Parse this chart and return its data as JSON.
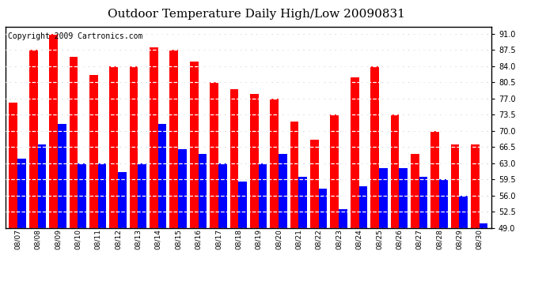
{
  "title": "Outdoor Temperature Daily High/Low 20090831",
  "copyright": "Copyright 2009 Cartronics.com",
  "dates": [
    "08/07",
    "08/08",
    "08/09",
    "08/10",
    "08/11",
    "08/12",
    "08/13",
    "08/14",
    "08/15",
    "08/16",
    "08/17",
    "08/18",
    "08/19",
    "08/20",
    "08/21",
    "08/22",
    "08/23",
    "08/24",
    "08/25",
    "08/26",
    "08/27",
    "08/28",
    "08/29",
    "08/30"
  ],
  "highs": [
    76,
    87.5,
    91,
    86,
    82,
    84,
    84,
    88,
    87.5,
    85,
    80.5,
    79,
    78,
    77,
    72,
    68,
    73.5,
    81.5,
    84,
    73.5,
    65,
    70,
    67,
    67
  ],
  "lows": [
    64,
    67,
    71.5,
    63,
    63,
    61,
    63,
    71.5,
    66,
    65,
    63,
    59,
    63,
    65,
    60,
    57.5,
    53,
    58,
    62,
    62,
    60,
    59.5,
    56,
    50
  ],
  "high_color": "#ff0000",
  "low_color": "#0000ff",
  "bg_color": "#ffffff",
  "ylim_min": 49.0,
  "ylim_max": 92.5,
  "yticks": [
    49.0,
    52.5,
    56.0,
    59.5,
    63.0,
    66.5,
    70.0,
    73.5,
    77.0,
    80.5,
    84.0,
    87.5,
    91.0
  ],
  "title_fontsize": 11,
  "copyright_fontsize": 7,
  "bar_width": 0.42
}
